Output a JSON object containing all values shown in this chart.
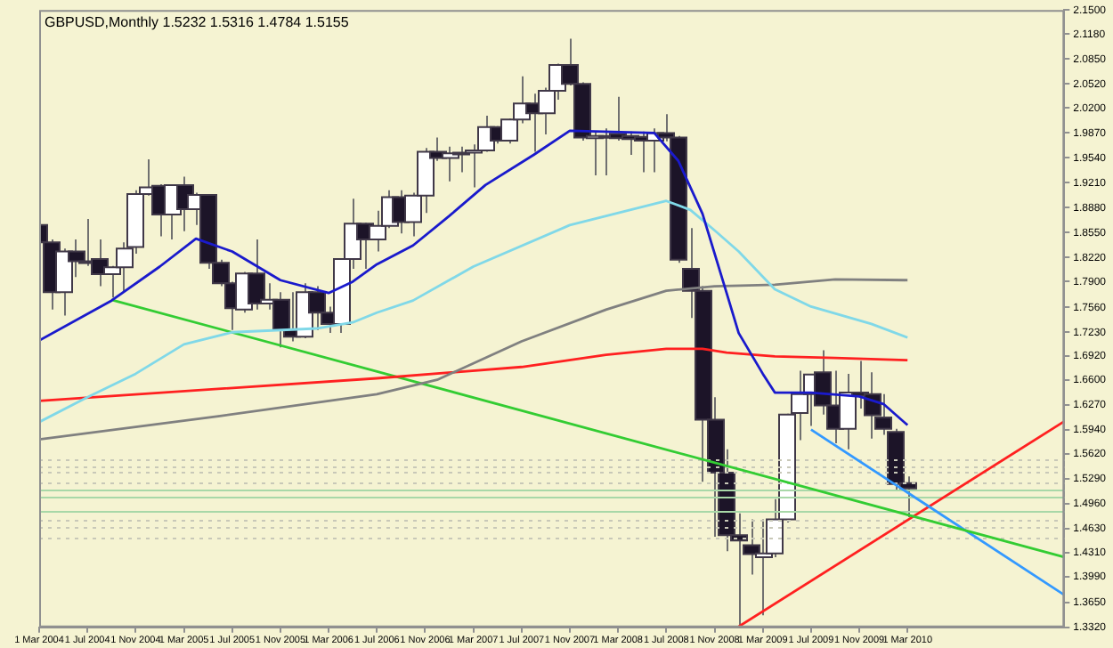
{
  "chart_data": {
    "type": "candlestick",
    "title": "GBPUSD,Monthly 1.5232 1.5316 1.4784 1.5155",
    "x": [
      "2004-03",
      "2004-04",
      "2004-05",
      "2004-06",
      "2004-07",
      "2004-08",
      "2004-09",
      "2004-10",
      "2004-11",
      "2004-12",
      "2005-01",
      "2005-02",
      "2005-03",
      "2005-04",
      "2005-05",
      "2005-06",
      "2005-07",
      "2005-08",
      "2005-09",
      "2005-10",
      "2005-11",
      "2005-12",
      "2006-01",
      "2006-02",
      "2006-03",
      "2006-04",
      "2006-05",
      "2006-06",
      "2006-07",
      "2006-08",
      "2006-09",
      "2006-10",
      "2006-11",
      "2006-12",
      "2007-01",
      "2007-02",
      "2007-03",
      "2007-04",
      "2007-05",
      "2007-06",
      "2007-07",
      "2007-08",
      "2007-09",
      "2007-10",
      "2007-11",
      "2007-12",
      "2008-01",
      "2008-02",
      "2008-03",
      "2008-04",
      "2008-05",
      "2008-06",
      "2008-07",
      "2008-08",
      "2008-09",
      "2008-10",
      "2008-11",
      "2008-12",
      "2009-01",
      "2009-02",
      "2009-03",
      "2009-04",
      "2009-05",
      "2009-06",
      "2009-07",
      "2009-08",
      "2009-09",
      "2009-10",
      "2009-11",
      "2009-12",
      "2010-01",
      "2010-02",
      "2010-03"
    ],
    "ohlc": [
      [
        1.865,
        1.869,
        1.838,
        1.842
      ],
      [
        1.842,
        1.846,
        1.753,
        1.776
      ],
      [
        1.776,
        1.834,
        1.745,
        1.83
      ],
      [
        1.83,
        1.846,
        1.796,
        1.817
      ],
      [
        1.817,
        1.873,
        1.811,
        1.816
      ],
      [
        1.82,
        1.846,
        1.784,
        1.8
      ],
      [
        1.8,
        1.811,
        1.769,
        1.809
      ],
      [
        1.809,
        1.842,
        1.776,
        1.834
      ],
      [
        1.836,
        1.911,
        1.827,
        1.906
      ],
      [
        1.906,
        1.952,
        1.904,
        1.915
      ],
      [
        1.917,
        1.919,
        1.85,
        1.879
      ],
      [
        1.879,
        1.919,
        1.846,
        1.918
      ],
      [
        1.918,
        1.929,
        1.857,
        1.886
      ],
      [
        1.886,
        1.908,
        1.865,
        1.905
      ],
      [
        1.905,
        1.906,
        1.807,
        1.815
      ],
      [
        1.815,
        1.819,
        1.784,
        1.788
      ],
      [
        1.788,
        1.79,
        1.726,
        1.755
      ],
      [
        1.753,
        1.803,
        1.749,
        1.801
      ],
      [
        1.801,
        1.846,
        1.753,
        1.761
      ],
      [
        1.761,
        1.788,
        1.753,
        1.766
      ],
      [
        1.766,
        1.776,
        1.703,
        1.726
      ],
      [
        1.726,
        1.776,
        1.711,
        1.717
      ],
      [
        1.717,
        1.788,
        1.715,
        1.776
      ],
      [
        1.776,
        1.784,
        1.726,
        1.749
      ],
      [
        1.749,
        1.757,
        1.722,
        1.734
      ],
      [
        1.734,
        1.821,
        1.722,
        1.82
      ],
      [
        1.82,
        1.9,
        1.807,
        1.867
      ],
      [
        1.867,
        1.868,
        1.807,
        1.846
      ],
      [
        1.846,
        1.884,
        1.83,
        1.864
      ],
      [
        1.864,
        1.911,
        1.861,
        1.902
      ],
      [
        1.902,
        1.911,
        1.854,
        1.869
      ],
      [
        1.869,
        1.908,
        1.85,
        1.904
      ],
      [
        1.904,
        1.967,
        1.881,
        1.962
      ],
      [
        1.962,
        1.981,
        1.95,
        1.954
      ],
      [
        1.954,
        1.969,
        1.923,
        1.96
      ],
      [
        1.96,
        1.969,
        1.935,
        1.961
      ],
      [
        1.961,
        1.972,
        1.915,
        1.964
      ],
      [
        1.964,
        2.01,
        1.962,
        1.995
      ],
      [
        1.995,
        1.996,
        1.973,
        1.977
      ],
      [
        1.977,
        2.006,
        1.973,
        2.005
      ],
      [
        2.005,
        2.062,
        2.0,
        2.026
      ],
      [
        2.026,
        2.039,
        1.962,
        2.013
      ],
      [
        2.013,
        2.047,
        1.985,
        2.043
      ],
      [
        2.043,
        2.079,
        2.031,
        2.077
      ],
      [
        2.077,
        2.112,
        2.05,
        2.052
      ],
      [
        2.052,
        2.054,
        1.977,
        1.981
      ],
      [
        1.98,
        1.989,
        1.931,
        1.983
      ],
      [
        1.983,
        1.993,
        1.931,
        1.982
      ],
      [
        1.986,
        2.035,
        1.977,
        1.98
      ],
      [
        1.983,
        1.989,
        1.958,
        1.979
      ],
      [
        1.982,
        1.989,
        1.935,
        1.977
      ],
      [
        1.977,
        1.993,
        1.935,
        1.987
      ],
      [
        1.987,
        2.012,
        1.976,
        1.981
      ],
      [
        1.981,
        1.983,
        1.815,
        1.819
      ],
      [
        1.807,
        1.861,
        1.742,
        1.778
      ],
      [
        1.778,
        1.784,
        1.525,
        1.607
      ],
      [
        1.607,
        1.637,
        1.452,
        1.537
      ],
      [
        1.537,
        1.568,
        1.433,
        1.454
      ],
      [
        1.454,
        1.483,
        1.333,
        1.447
      ],
      [
        1.441,
        1.475,
        1.402,
        1.429
      ],
      [
        1.425,
        1.475,
        1.348,
        1.43
      ],
      [
        1.43,
        1.502,
        1.425,
        1.475
      ],
      [
        1.475,
        1.615,
        1.471,
        1.614
      ],
      [
        1.616,
        1.672,
        1.58,
        1.641
      ],
      [
        1.641,
        1.668,
        1.599,
        1.667
      ],
      [
        1.67,
        1.699,
        1.614,
        1.626
      ],
      [
        1.626,
        1.672,
        1.576,
        1.595
      ],
      [
        1.595,
        1.668,
        1.568,
        1.643
      ],
      [
        1.643,
        1.685,
        1.622,
        1.639
      ],
      [
        1.641,
        1.67,
        1.582,
        1.613
      ],
      [
        1.61,
        1.641,
        1.587,
        1.595
      ],
      [
        1.591,
        1.595,
        1.514,
        1.522
      ],
      [
        1.523,
        1.532,
        1.478,
        1.516
      ]
    ],
    "colors": [
      "#1c1428",
      "#1c1428",
      "#ffffff",
      "#1c1428",
      "#1c1428",
      "#1c1428",
      "#ffffff",
      "#ffffff",
      "#ffffff",
      "#ffffff",
      "#1c1428",
      "#ffffff",
      "#1c1428",
      "#ffffff",
      "#1c1428",
      "#1c1428",
      "#1c1428",
      "#ffffff",
      "#1c1428",
      "#ffffff",
      "#1c1428",
      "#1c1428",
      "#ffffff",
      "#1c1428",
      "#1c1428",
      "#ffffff",
      "#ffffff",
      "#1c1428",
      "#ffffff",
      "#ffffff",
      "#1c1428",
      "#ffffff",
      "#ffffff",
      "#1c1428",
      "#ffffff",
      "#ffffff",
      "#ffffff",
      "#ffffff",
      "#1c1428",
      "#ffffff",
      "#ffffff",
      "#1c1428",
      "#ffffff",
      "#ffffff",
      "#1c1428",
      "#1c1428",
      "#ffffff",
      "#1c1428",
      "#1c1428",
      "#1c1428",
      "#1c1428",
      "#ffffff",
      "#1c1428",
      "#1c1428",
      "#1c1428",
      "#1c1428",
      "#1c1428",
      "#1c1428",
      "#1c1428",
      "#1c1428",
      "#ffffff",
      "#ffffff",
      "#ffffff",
      "#ffffff",
      "#ffffff",
      "#1c1428",
      "#1c1428",
      "#ffffff",
      "#1c1428",
      "#1c1428",
      "#1c1428",
      "#1c1428",
      "#1c1428"
    ],
    "series": [
      {
        "type": "line",
        "color": "#1a1acc",
        "x": [
          "2004-03",
          "2004-09",
          "2005-01",
          "2005-04",
          "2005-07",
          "2005-11",
          "2006-03",
          "2006-05",
          "2006-07",
          "2006-10",
          "2007-01",
          "2007-04",
          "2007-08",
          "2007-11",
          "2008-06",
          "2008-08",
          "2008-10",
          "2008-12",
          "2009-01",
          "2009-03",
          "2009-04",
          "2009-07",
          "2009-11",
          "2010-01",
          "2010-03"
        ],
        "values": [
          1.712,
          1.765,
          1.81,
          1.847,
          1.83,
          1.792,
          1.775,
          1.79,
          1.813,
          1.838,
          1.877,
          1.918,
          1.958,
          1.99,
          1.987,
          1.95,
          1.88,
          1.775,
          1.722,
          1.668,
          1.643,
          1.643,
          1.638,
          1.628,
          1.6
        ]
      },
      {
        "type": "line",
        "color": "#80d8e8",
        "x": [
          "2004-03",
          "2004-07",
          "2004-11",
          "2005-03",
          "2005-07",
          "2006-02",
          "2006-05",
          "2006-07",
          "2006-10",
          "2007-03",
          "2007-11",
          "2008-07",
          "2008-09",
          "2008-11",
          "2009-01",
          "2009-04",
          "2009-07",
          "2009-12",
          "2010-03"
        ],
        "values": [
          1.604,
          1.637,
          1.668,
          1.707,
          1.723,
          1.728,
          1.736,
          1.749,
          1.765,
          1.81,
          1.865,
          1.897,
          1.885,
          1.858,
          1.83,
          1.78,
          1.757,
          1.734,
          1.716
        ]
      },
      {
        "type": "line",
        "color": "#808080",
        "x": [
          "2004-03",
          "2005-06",
          "2006-07",
          "2006-12",
          "2007-07",
          "2008-02",
          "2008-07",
          "2008-11",
          "2009-04",
          "2009-09",
          "2010-03"
        ],
        "values": [
          1.581,
          1.612,
          1.641,
          1.66,
          1.711,
          1.753,
          1.778,
          1.784,
          1.786,
          1.793,
          1.792
        ]
      },
      {
        "type": "line",
        "color": "#ff2020",
        "x": [
          "2004-03",
          "2006-07",
          "2007-07",
          "2008-02",
          "2008-07",
          "2008-10",
          "2008-12",
          "2009-04",
          "2009-09",
          "2010-03"
        ],
        "values": [
          1.632,
          1.662,
          1.677,
          1.693,
          1.701,
          1.701,
          1.696,
          1.691,
          1.689,
          1.686
        ]
      },
      {
        "type": "line",
        "color": "#33cc33",
        "x": [
          "2004-09",
          "2011-04"
        ],
        "values": [
          1.766,
          1.425
        ]
      },
      {
        "type": "line",
        "color": "#3399ff",
        "x": [
          "2009-07",
          "2011-04"
        ],
        "values": [
          1.594,
          1.375
        ]
      },
      {
        "type": "line",
        "color": "#ff2020",
        "x": [
          "2009-01",
          "2011-04"
        ],
        "values": [
          1.333,
          1.605
        ]
      }
    ],
    "ref_lines": [
      {
        "axis": "y",
        "value": 1.554,
        "color": "#c8c8b8",
        "line_style": "dotted"
      },
      {
        "axis": "y",
        "value": 1.545,
        "color": "#c8c8b8",
        "line_style": "dotted"
      },
      {
        "axis": "y",
        "value": 1.537,
        "color": "#c8c8b8",
        "line_style": "dotted"
      },
      {
        "axis": "y",
        "value": 1.525,
        "color": "#c8c8b8",
        "line_style": "dotted"
      },
      {
        "axis": "y",
        "value": 1.475,
        "color": "#c8c8b8",
        "line_style": "dotted"
      },
      {
        "axis": "y",
        "value": 1.465,
        "color": "#c8c8b8",
        "line_style": "dotted"
      },
      {
        "axis": "y",
        "value": 1.452,
        "color": "#c8c8b8",
        "line_style": "dotted"
      },
      {
        "axis": "y",
        "value": 1.514,
        "color": "#a8d8a8",
        "line_style": "solid"
      },
      {
        "axis": "y",
        "value": 1.504,
        "color": "#a8d8a8",
        "line_style": "solid"
      },
      {
        "axis": "y",
        "value": 1.487,
        "color": "#a8d8a8",
        "line_style": "solid"
      }
    ],
    "xlim": [
      "2004-03",
      "2011-04"
    ],
    "xticks": [
      {
        "value": "2004-03",
        "label": "1 Mar 2004"
      },
      {
        "value": "2004-07",
        "label": "1 Jul 2004"
      },
      {
        "value": "2004-11",
        "label": "1 Nov 2004"
      },
      {
        "value": "2005-03",
        "label": "1 Mar 2005"
      },
      {
        "value": "2005-07",
        "label": "1 Jul 2005"
      },
      {
        "value": "2005-11",
        "label": "1 Nov 2005"
      },
      {
        "value": "2006-03",
        "label": "1 Mar 2006"
      },
      {
        "value": "2006-07",
        "label": "1 Jul 2006"
      },
      {
        "value": "2006-11",
        "label": "1 Nov 2006"
      },
      {
        "value": "2007-03",
        "label": "1 Mar 2007"
      },
      {
        "value": "2007-07",
        "label": "1 Jul 2007"
      },
      {
        "value": "2007-11",
        "label": "1 Nov 2007"
      },
      {
        "value": "2008-03",
        "label": "1 Mar 2008"
      },
      {
        "value": "2008-07",
        "label": "1 Jul 2008"
      },
      {
        "value": "2008-11",
        "label": "1 Nov 2008"
      },
      {
        "value": "2009-03",
        "label": "1 Mar 2009"
      },
      {
        "value": "2009-07",
        "label": "1 Jul 2009"
      },
      {
        "value": "2009-11",
        "label": "1 Nov 2009"
      },
      {
        "value": "2010-03",
        "label": "1 Mar 2010"
      }
    ],
    "ylim": [
      1.332,
      2.15
    ],
    "yticks": [
      {
        "value": 2.15,
        "label": "2.1500"
      },
      {
        "value": 2.118,
        "label": "2.1180"
      },
      {
        "value": 2.085,
        "label": "2.0850"
      },
      {
        "value": 2.052,
        "label": "2.0520"
      },
      {
        "value": 2.02,
        "label": "2.0200"
      },
      {
        "value": 1.987,
        "label": "1.9870"
      },
      {
        "value": 1.954,
        "label": "1.9540"
      },
      {
        "value": 1.921,
        "label": "1.9210"
      },
      {
        "value": 1.888,
        "label": "1.8880"
      },
      {
        "value": 1.855,
        "label": "1.8550"
      },
      {
        "value": 1.822,
        "label": "1.8220"
      },
      {
        "value": 1.79,
        "label": "1.7900"
      },
      {
        "value": 1.756,
        "label": "1.7560"
      },
      {
        "value": 1.723,
        "label": "1.7230"
      },
      {
        "value": 1.692,
        "label": "1.6920"
      },
      {
        "value": 1.66,
        "label": "1.6600"
      },
      {
        "value": 1.627,
        "label": "1.6270"
      },
      {
        "value": 1.594,
        "label": "1.5940"
      },
      {
        "value": 1.562,
        "label": "1.5620"
      },
      {
        "value": 1.529,
        "label": "1.5290"
      },
      {
        "value": 1.496,
        "label": "1.4960"
      },
      {
        "value": 1.463,
        "label": "1.4630"
      },
      {
        "value": 1.431,
        "label": "1.4310"
      },
      {
        "value": 1.399,
        "label": "1.3990"
      },
      {
        "value": 1.365,
        "label": "1.3650"
      },
      {
        "value": 1.332,
        "label": "1.3320"
      }
    ],
    "grid": false,
    "legend": false,
    "marker": "none"
  }
}
